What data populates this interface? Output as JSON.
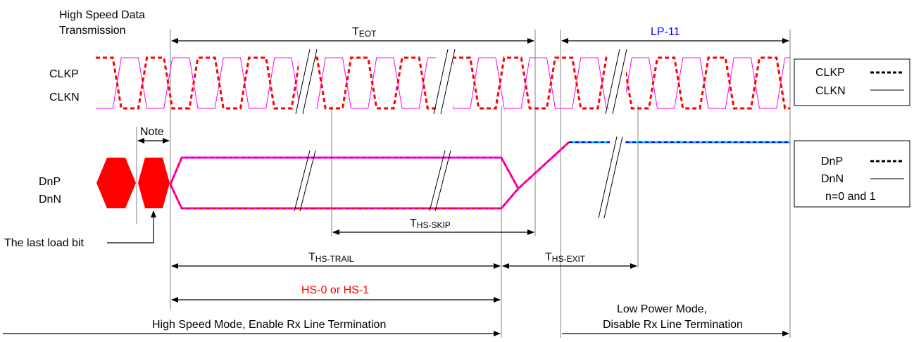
{
  "labels": {
    "hs_data_tx_line1": "High Speed Data",
    "hs_data_tx_line2": "Transmission",
    "teot_main": "T",
    "teot_sub": "EOT",
    "lp11": "LP-11",
    "clkp": "CLKP",
    "clkn": "CLKN",
    "note": "Note",
    "dnp": "DnP",
    "dnn": "DnN",
    "last_load_bit": "The last load bit",
    "ths_skip_main": "T",
    "ths_skip_sub": "HS-SKIP",
    "ths_trail_main": "T",
    "ths_trail_sub": "HS-TRAIL",
    "ths_exit_main": "T",
    "ths_exit_sub": "HS-EXIT",
    "hs0_hs1": "HS-0 or HS-1",
    "hs_mode": "High Speed Mode, Enable Rx Line Termination",
    "lp_mode_line1": "Low Power Mode,",
    "lp_mode_line2": "Disable Rx Line Termination"
  },
  "legend_clock": {
    "item1": "CLKP",
    "item2": "CLKN"
  },
  "legend_data": {
    "item1": "DnP",
    "item2": "DnN",
    "note": "n=0 and 1"
  },
  "colors": {
    "clkp": "#ff0000",
    "clkn": "#ff00ff",
    "data_dash": "#ff0000",
    "data_solid": "#ff00ff",
    "lp_dash": "#0000ff",
    "lp_solid": "#00c0ff",
    "bit_fill": "#ff0000",
    "red_text": "#ff0000",
    "blue_text": "#0000ff"
  }
}
